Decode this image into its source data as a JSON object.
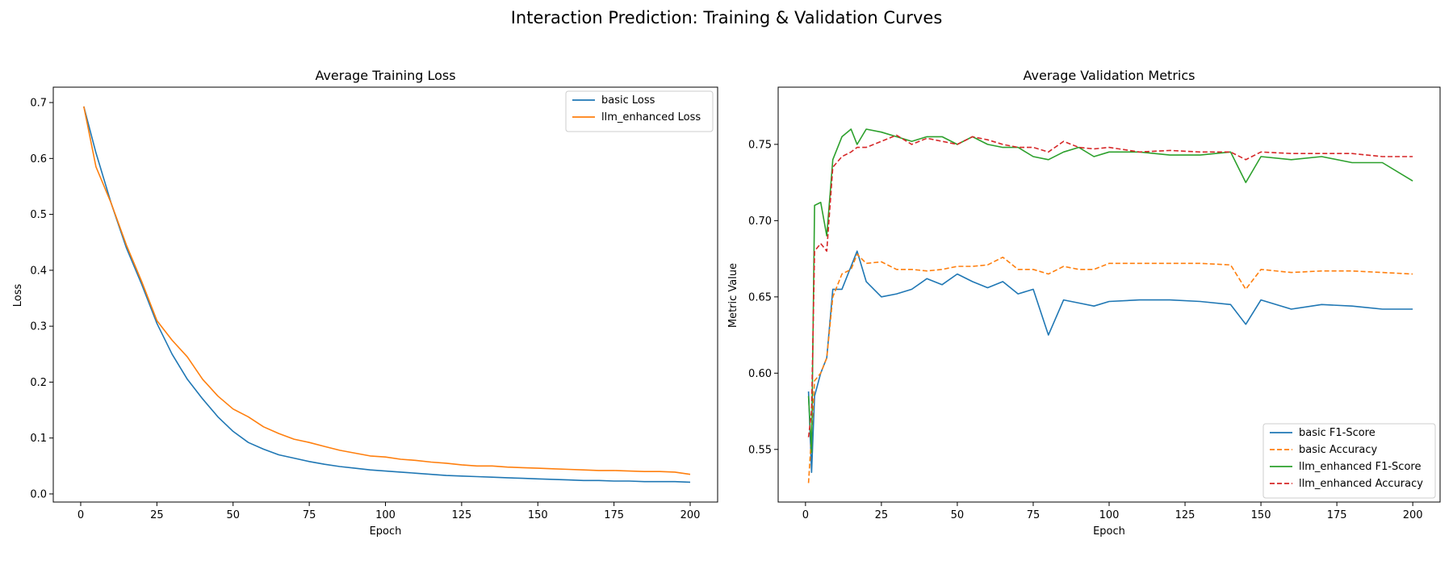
{
  "figure": {
    "suptitle": "Interaction Prediction: Training & Validation Curves"
  },
  "chart_data": [
    {
      "type": "line",
      "title": "Average Training Loss",
      "xlabel": "Epoch",
      "ylabel": "Loss",
      "xlim": [
        -9,
        209
      ],
      "ylim": [
        -0.0145,
        0.7275
      ],
      "xticks": [
        0,
        25,
        50,
        75,
        100,
        125,
        150,
        175,
        200
      ],
      "yticks": [
        0.0,
        0.1,
        0.2,
        0.3,
        0.4,
        0.5,
        0.6,
        0.7
      ],
      "ytick_format": 1,
      "legend_position": "upper right",
      "grid": false,
      "x": [
        1,
        5,
        10,
        15,
        20,
        25,
        30,
        35,
        40,
        45,
        50,
        55,
        60,
        65,
        70,
        75,
        80,
        85,
        90,
        95,
        100,
        105,
        110,
        115,
        120,
        125,
        130,
        135,
        140,
        145,
        150,
        155,
        160,
        165,
        170,
        175,
        180,
        185,
        190,
        195,
        200
      ],
      "series": [
        {
          "name": "basic Loss",
          "color": "#1f77b4",
          "dash": "",
          "values": [
            0.693,
            0.61,
            0.52,
            0.44,
            0.375,
            0.305,
            0.25,
            0.205,
            0.17,
            0.138,
            0.112,
            0.092,
            0.08,
            0.07,
            0.064,
            0.058,
            0.053,
            0.049,
            0.046,
            0.043,
            0.041,
            0.039,
            0.037,
            0.035,
            0.033,
            0.032,
            0.031,
            0.03,
            0.029,
            0.028,
            0.027,
            0.026,
            0.025,
            0.024,
            0.024,
            0.023,
            0.023,
            0.022,
            0.022,
            0.022,
            0.021
          ]
        },
        {
          "name": "llm_enhanced Loss",
          "color": "#ff7f0e",
          "dash": "",
          "values": [
            0.693,
            0.585,
            0.52,
            0.445,
            0.38,
            0.31,
            0.275,
            0.245,
            0.205,
            0.175,
            0.152,
            0.138,
            0.12,
            0.108,
            0.098,
            0.092,
            0.085,
            0.078,
            0.073,
            0.068,
            0.066,
            0.062,
            0.06,
            0.057,
            0.055,
            0.052,
            0.05,
            0.05,
            0.048,
            0.047,
            0.046,
            0.045,
            0.044,
            0.043,
            0.042,
            0.042,
            0.041,
            0.04,
            0.04,
            0.039,
            0.035
          ]
        }
      ]
    },
    {
      "type": "line",
      "title": "Average Validation Metrics",
      "xlabel": "Epoch",
      "ylabel": "Metric Value",
      "xlim": [
        -9,
        209
      ],
      "ylim": [
        0.5155,
        0.7875
      ],
      "xticks": [
        0,
        25,
        50,
        75,
        100,
        125,
        150,
        175,
        200
      ],
      "yticks": [
        0.55,
        0.6,
        0.65,
        0.7,
        0.75
      ],
      "ytick_format": 2,
      "legend_position": "lower right",
      "grid": false,
      "x": [
        1,
        2,
        3,
        5,
        7,
        9,
        12,
        15,
        17,
        20,
        25,
        30,
        35,
        40,
        45,
        50,
        55,
        60,
        65,
        70,
        75,
        80,
        85,
        90,
        95,
        100,
        110,
        120,
        130,
        140,
        145,
        150,
        160,
        170,
        180,
        190,
        200
      ],
      "series": [
        {
          "name": "basic F1-Score",
          "color": "#1f77b4",
          "dash": "",
          "values": [
            0.588,
            0.535,
            0.585,
            0.6,
            0.61,
            0.655,
            0.655,
            0.67,
            0.68,
            0.66,
            0.65,
            0.652,
            0.655,
            0.662,
            0.658,
            0.665,
            0.66,
            0.656,
            0.66,
            0.652,
            0.655,
            0.625,
            0.648,
            0.646,
            0.644,
            0.647,
            0.648,
            0.648,
            0.647,
            0.645,
            0.632,
            0.648,
            0.642,
            0.645,
            0.644,
            0.642,
            0.642
          ]
        },
        {
          "name": "basic Accuracy",
          "color": "#ff7f0e",
          "dash": "6,3",
          "values": [
            0.528,
            0.56,
            0.595,
            0.6,
            0.61,
            0.65,
            0.665,
            0.668,
            0.678,
            0.672,
            0.673,
            0.668,
            0.668,
            0.667,
            0.668,
            0.67,
            0.67,
            0.671,
            0.676,
            0.668,
            0.668,
            0.665,
            0.67,
            0.668,
            0.668,
            0.672,
            0.672,
            0.672,
            0.672,
            0.671,
            0.655,
            0.668,
            0.666,
            0.667,
            0.667,
            0.666,
            0.665
          ]
        },
        {
          "name": "llm_enhanced F1-Score",
          "color": "#2ca02c",
          "dash": "",
          "values": [
            0.585,
            0.548,
            0.71,
            0.712,
            0.69,
            0.74,
            0.755,
            0.76,
            0.75,
            0.76,
            0.758,
            0.755,
            0.752,
            0.755,
            0.755,
            0.75,
            0.755,
            0.75,
            0.748,
            0.748,
            0.742,
            0.74,
            0.745,
            0.748,
            0.742,
            0.745,
            0.745,
            0.743,
            0.743,
            0.745,
            0.725,
            0.742,
            0.74,
            0.742,
            0.738,
            0.738,
            0.726
          ]
        },
        {
          "name": "llm_enhanced Accuracy",
          "color": "#d62728",
          "dash": "6,3",
          "values": [
            0.558,
            0.575,
            0.68,
            0.685,
            0.68,
            0.735,
            0.742,
            0.745,
            0.748,
            0.748,
            0.752,
            0.756,
            0.75,
            0.754,
            0.752,
            0.75,
            0.755,
            0.753,
            0.75,
            0.748,
            0.748,
            0.745,
            0.752,
            0.748,
            0.747,
            0.748,
            0.745,
            0.746,
            0.745,
            0.745,
            0.74,
            0.745,
            0.744,
            0.744,
            0.744,
            0.742,
            0.742
          ]
        }
      ]
    }
  ]
}
